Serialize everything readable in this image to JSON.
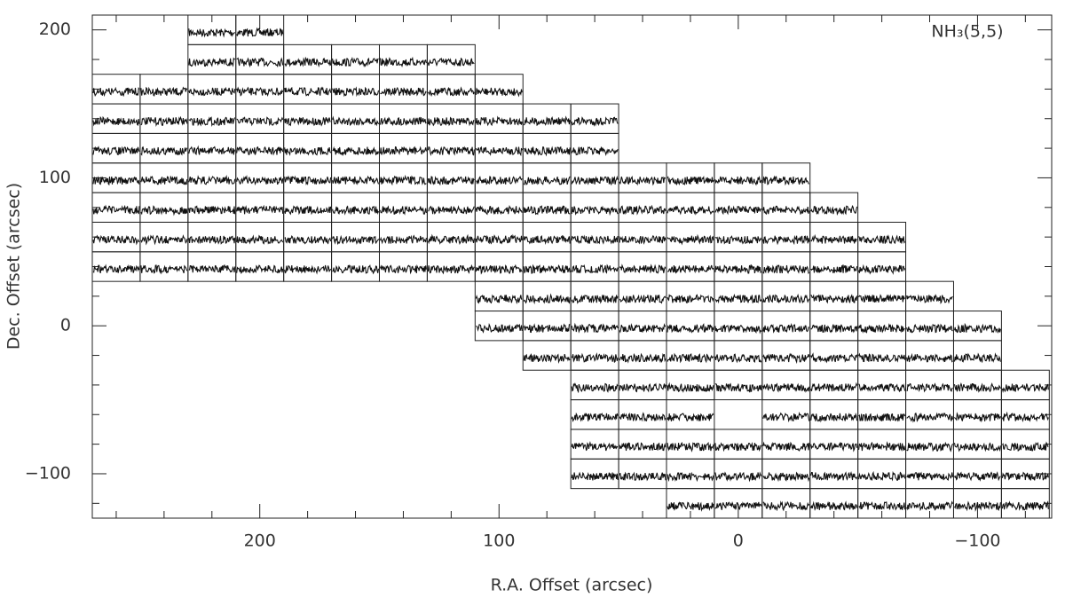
{
  "chart_data": {
    "type": "spectral-map",
    "label": "NH₃(5,5)",
    "xlabel": "R.A. Offset (arcsec)",
    "ylabel": "Dec. Offset (arcsec)",
    "xlim": [
      270,
      -131
    ],
    "ylim": [
      -130,
      210
    ],
    "xticks": [
      200,
      100,
      0,
      {
        "value": -100,
        "label": "−100"
      }
    ],
    "yticks": [
      200,
      100,
      0,
      {
        "value": -100,
        "label": "−100"
      }
    ],
    "xminorticks": [
      260,
      240,
      220,
      180,
      160,
      140,
      120,
      80,
      60,
      40,
      20,
      -20,
      -40,
      -60,
      -80,
      -120
    ],
    "yminorticks": [
      180,
      160,
      140,
      120,
      80,
      60,
      40,
      20,
      -20,
      -40,
      -60,
      -80,
      -120
    ],
    "rows": [
      {
        "dec": 200,
        "ra": [
          220,
          200
        ]
      },
      {
        "dec": 180,
        "ra": [
          220,
          200,
          180,
          160,
          140,
          120
        ]
      },
      {
        "dec": 160,
        "ra": [
          260,
          240,
          220,
          200,
          180,
          160,
          140,
          120,
          100
        ]
      },
      {
        "dec": 140,
        "ra": [
          260,
          240,
          220,
          200,
          180,
          160,
          140,
          120,
          100,
          80,
          60
        ]
      },
      {
        "dec": 120,
        "ra": [
          260,
          240,
          220,
          200,
          180,
          160,
          140,
          120,
          100,
          80,
          60
        ]
      },
      {
        "dec": 100,
        "ra": [
          260,
          240,
          220,
          200,
          180,
          160,
          140,
          120,
          100,
          80,
          60,
          40,
          20,
          0,
          -20
        ]
      },
      {
        "dec": 80,
        "ra": [
          260,
          240,
          220,
          200,
          180,
          160,
          140,
          120,
          100,
          80,
          60,
          40,
          20,
          0,
          -20,
          -40
        ]
      },
      {
        "dec": 60,
        "ra": [
          260,
          240,
          220,
          200,
          180,
          160,
          140,
          120,
          100,
          80,
          60,
          40,
          20,
          0,
          -20,
          -40,
          -60
        ]
      },
      {
        "dec": 40,
        "ra": [
          260,
          240,
          220,
          200,
          180,
          160,
          140,
          120,
          100,
          80,
          60,
          40,
          20,
          0,
          -20,
          -40,
          -60
        ]
      },
      {
        "dec": 20,
        "ra": [
          100,
          80,
          60,
          40,
          20,
          0,
          -20,
          -40,
          -60,
          -80
        ]
      },
      {
        "dec": 0,
        "ra": [
          100,
          80,
          60,
          40,
          20,
          0,
          -20,
          -40,
          -60,
          -80,
          -100
        ]
      },
      {
        "dec": -20,
        "ra": [
          80,
          60,
          40,
          20,
          0,
          -20,
          -40,
          -60,
          -80,
          -100
        ]
      },
      {
        "dec": -40,
        "ra": [
          60,
          40,
          20,
          0,
          -20,
          -40,
          -60,
          -80,
          -100,
          -120
        ]
      },
      {
        "dec": -60,
        "ra": [
          60,
          40,
          20,
          -20,
          -40,
          -60,
          -80,
          -100,
          -120
        ]
      },
      {
        "dec": -80,
        "ra": [
          60,
          40,
          20,
          0,
          -20,
          -40,
          -60,
          -80,
          -100,
          -120
        ]
      },
      {
        "dec": -100,
        "ra": [
          60,
          40,
          20,
          0,
          -20,
          -40,
          -60,
          -80,
          -100,
          -120
        ]
      },
      {
        "dec": -120,
        "ra": [
          20,
          0,
          -20,
          -40,
          -60,
          -80,
          -100,
          -120
        ]
      }
    ]
  }
}
